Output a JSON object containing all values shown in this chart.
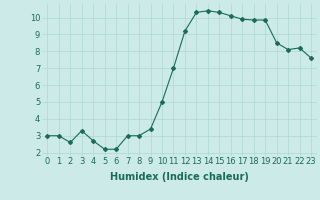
{
  "x": [
    0,
    1,
    2,
    3,
    4,
    5,
    6,
    7,
    8,
    9,
    10,
    11,
    12,
    13,
    14,
    15,
    16,
    17,
    18,
    19,
    20,
    21,
    22,
    23
  ],
  "y": [
    3.0,
    3.0,
    2.6,
    3.3,
    2.7,
    2.2,
    2.2,
    3.0,
    3.0,
    3.4,
    5.0,
    7.0,
    9.2,
    10.3,
    10.4,
    10.3,
    10.1,
    9.9,
    9.85,
    9.85,
    8.5,
    8.1,
    8.2,
    7.6
  ],
  "line_color": "#1a6b5a",
  "marker": "D",
  "marker_size": 2.0,
  "background_color": "#cceae8",
  "grid_color": "#aed8d5",
  "xlabel": "Humidex (Indice chaleur)",
  "xlim": [
    -0.5,
    23.5
  ],
  "ylim": [
    1.8,
    10.8
  ],
  "yticks": [
    2,
    3,
    4,
    5,
    6,
    7,
    8,
    9,
    10
  ],
  "xtick_labels": [
    "0",
    "1",
    "2",
    "3",
    "4",
    "5",
    "6",
    "7",
    "8",
    "9",
    "10",
    "11",
    "12",
    "13",
    "14",
    "15",
    "16",
    "17",
    "18",
    "19",
    "20",
    "21",
    "22",
    "23"
  ],
  "tick_color": "#1a6b5a",
  "label_color": "#1a6b5a",
  "xlabel_fontsize": 7,
  "tick_fontsize": 6
}
